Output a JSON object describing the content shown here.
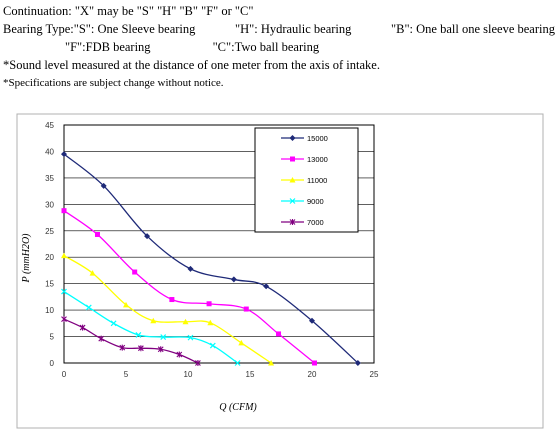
{
  "notes": {
    "continuation": "Continuation: \"X\" may be \"S\" \"H\" \"B\" \"F\" or \"C\"",
    "bearing_type_s": "Bearing Type:\"S\": One Sleeve bearing",
    "bearing_type_h": "\"H\": Hydraulic bearing",
    "bearing_type_b": "\"B\": One ball one sleeve bearing",
    "bearing_type_f": "\"F\":FDB bearing",
    "bearing_type_c": "\"C\":Two ball bearing",
    "sound_note": "*Sound level measured at the distance of one meter from the axis of intake.",
    "spec_note": "*Specifications are subject change without notice."
  },
  "chart_data": {
    "type": "line",
    "xlabel": "Q (CFM)",
    "ylabel": "P (mmH2O)",
    "xlim": [
      0,
      25
    ],
    "ylim": [
      0,
      45
    ],
    "xticks": [
      0,
      5,
      10,
      15,
      20,
      25
    ],
    "yticks": [
      0,
      5,
      10,
      15,
      20,
      25,
      30,
      35,
      40,
      45
    ],
    "grid": "horizontal",
    "legend_position": "top-right",
    "series": [
      {
        "name": "15000",
        "color": "#1f2a78",
        "marker": "diamond",
        "points": [
          [
            0,
            39.5
          ],
          [
            3.2,
            33.5
          ],
          [
            6.7,
            24
          ],
          [
            10.2,
            17.8
          ],
          [
            13.7,
            15.8
          ],
          [
            16.3,
            14.5
          ],
          [
            20,
            8
          ],
          [
            23.7,
            0
          ]
        ]
      },
      {
        "name": "13000",
        "color": "#ff00ff",
        "marker": "square",
        "points": [
          [
            0,
            28.8
          ],
          [
            2.7,
            24.3
          ],
          [
            5.7,
            17.2
          ],
          [
            8.7,
            12
          ],
          [
            11.7,
            11.2
          ],
          [
            14.7,
            10.2
          ],
          [
            17.3,
            5.5
          ],
          [
            20.2,
            0
          ]
        ]
      },
      {
        "name": "11000",
        "color": "#ffff00",
        "marker": "triangle",
        "points": [
          [
            0,
            20.3
          ],
          [
            2.3,
            17
          ],
          [
            5,
            11
          ],
          [
            7.2,
            8
          ],
          [
            9.8,
            7.8
          ],
          [
            11.8,
            7.6
          ],
          [
            14.3,
            3.8
          ],
          [
            16.7,
            0
          ]
        ]
      },
      {
        "name": "9000",
        "color": "#00ffff",
        "marker": "x",
        "points": [
          [
            0,
            13.5
          ],
          [
            2,
            10.5
          ],
          [
            4,
            7.5
          ],
          [
            6,
            5.3
          ],
          [
            8,
            4.9
          ],
          [
            10.2,
            4.8
          ],
          [
            12,
            3.3
          ],
          [
            14,
            0
          ]
        ]
      },
      {
        "name": "7000",
        "color": "#800080",
        "marker": "asterisk",
        "points": [
          [
            0,
            8.3
          ],
          [
            1.5,
            6.7
          ],
          [
            3,
            4.6
          ],
          [
            4.7,
            2.9
          ],
          [
            6.2,
            2.8
          ],
          [
            7.8,
            2.6
          ],
          [
            9.3,
            1.6
          ],
          [
            10.8,
            0
          ]
        ]
      }
    ]
  }
}
